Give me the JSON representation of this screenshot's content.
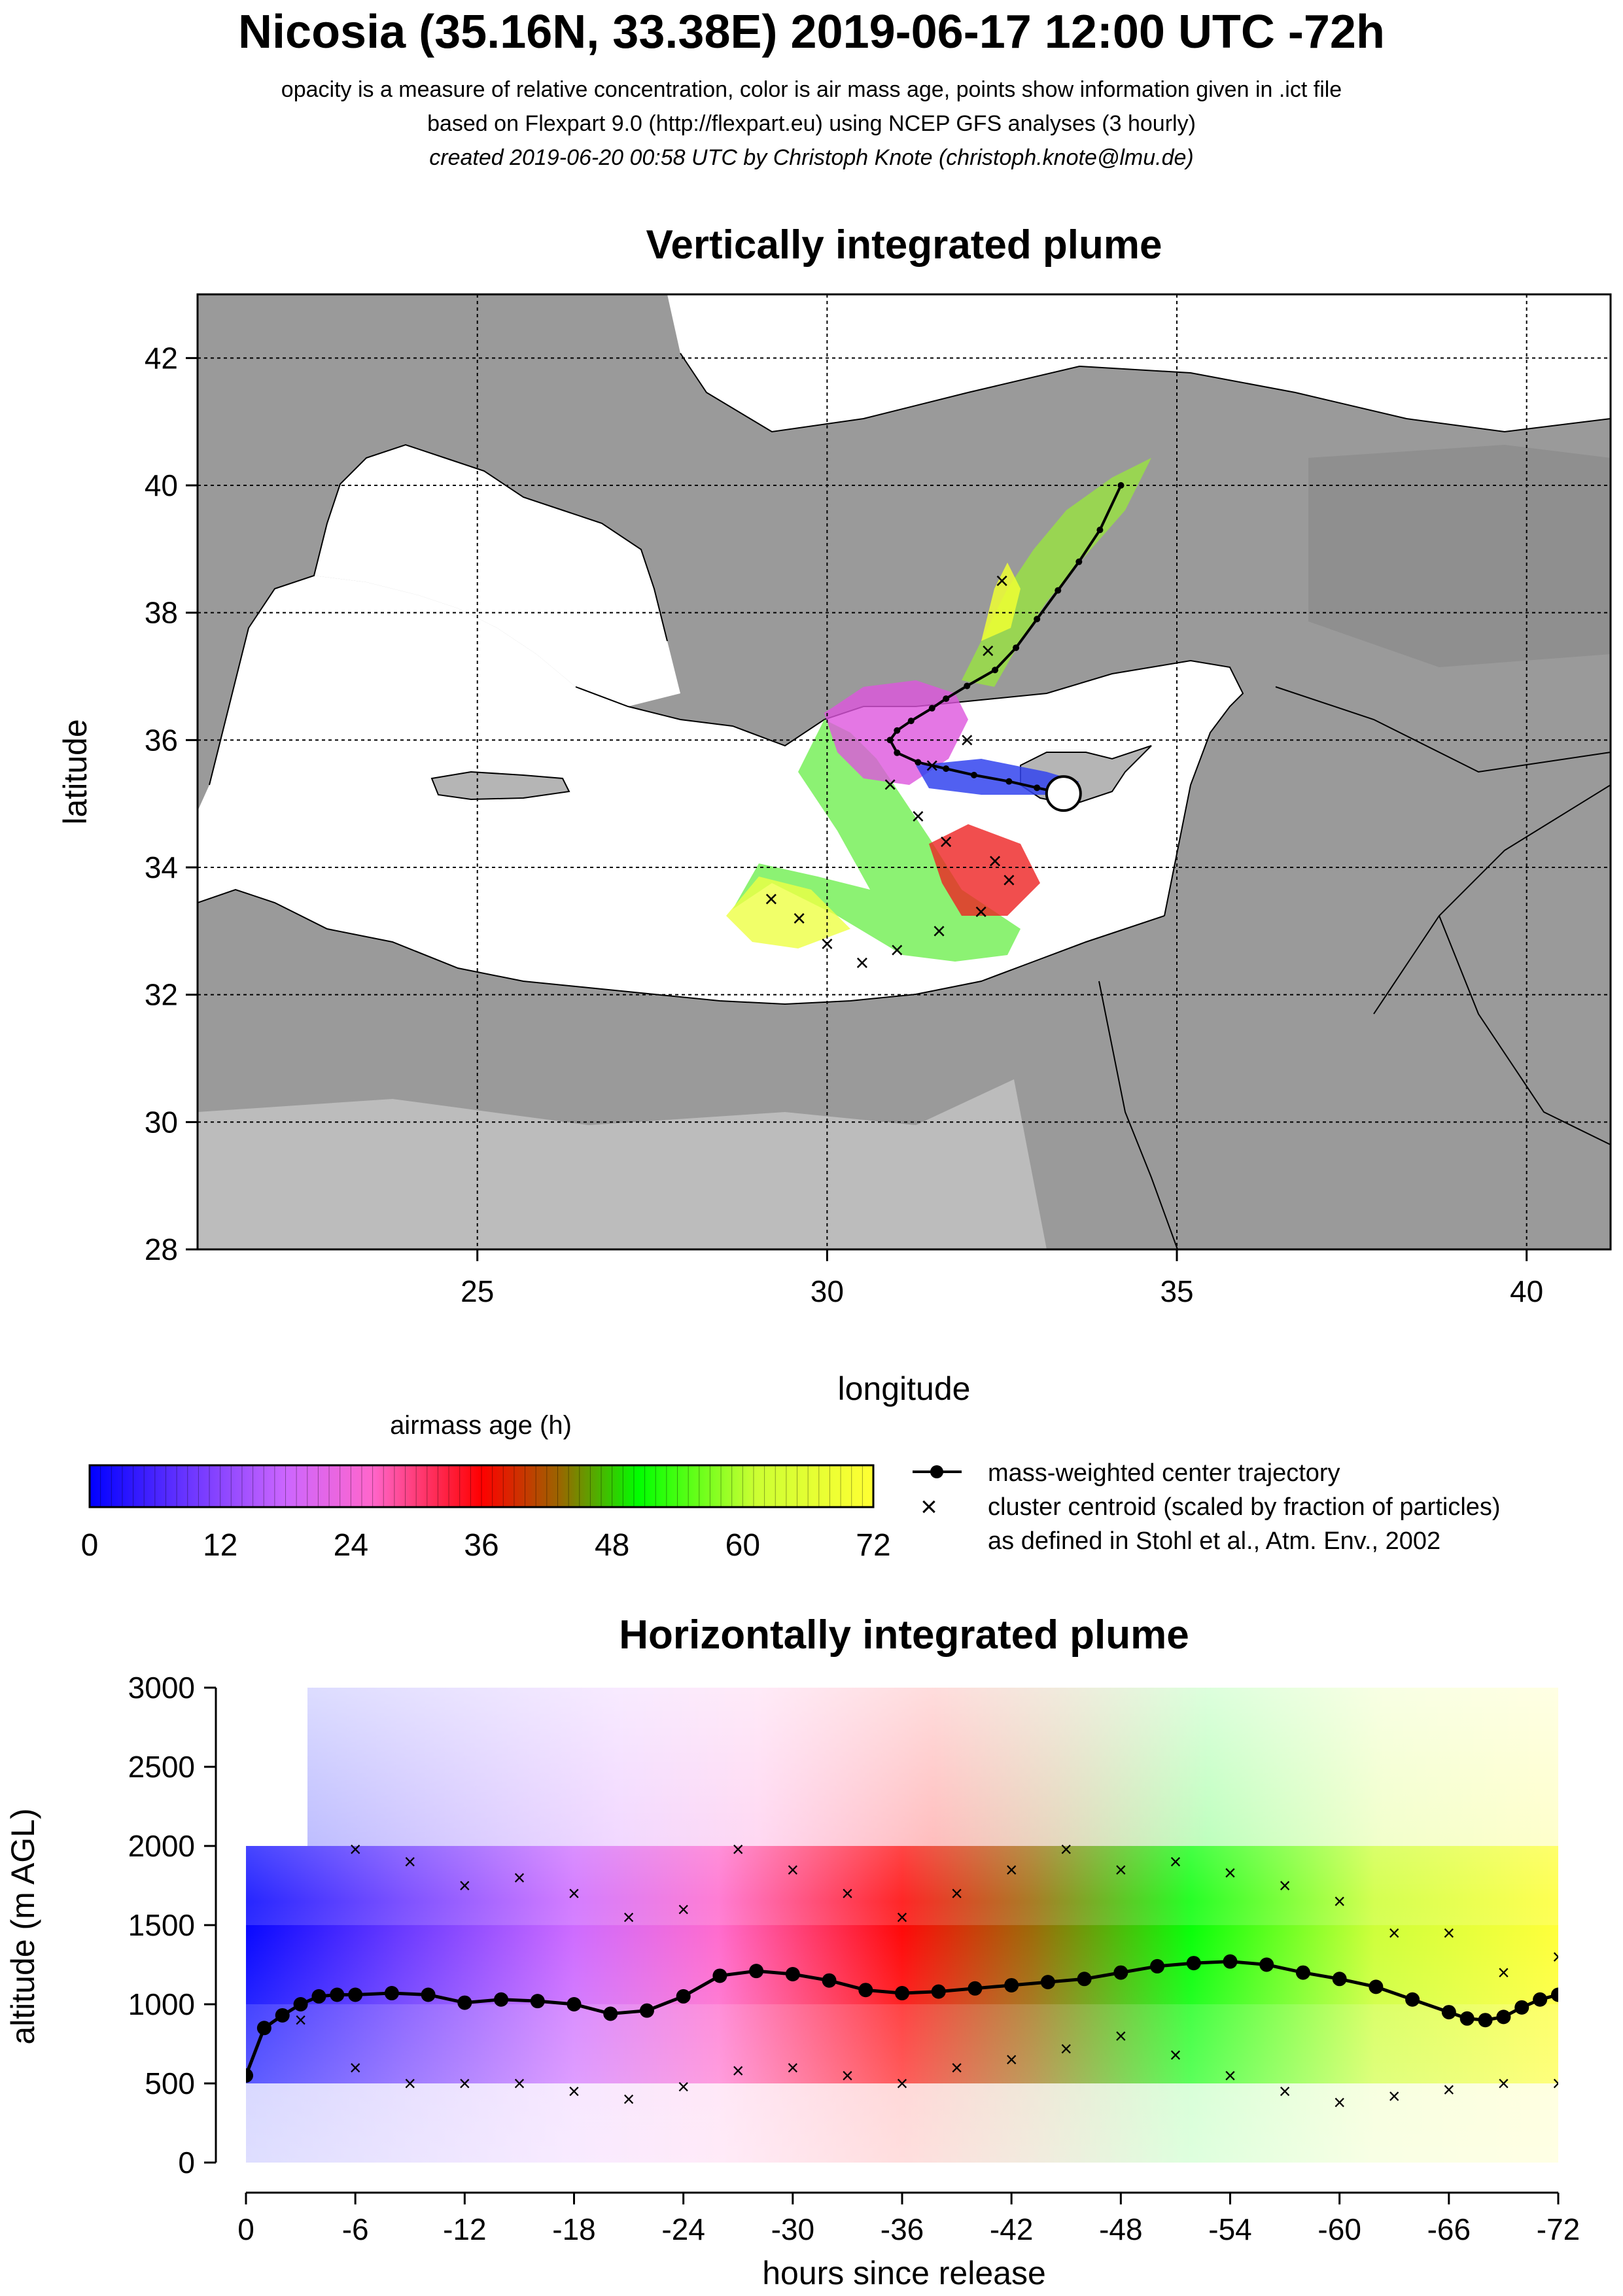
{
  "header": {
    "title": "Nicosia (35.16N, 33.38E) 2019-06-17 12:00 UTC -72h",
    "line1": "opacity is a measure of relative concentration, color is air mass age, points show information given in .ict file",
    "line2": "based on Flexpart 9.0 (http://flexpart.eu) using NCEP GFS analyses (3 hourly)",
    "line3": "created 2019-06-20 00:58 UTC by Christoph Knote (christoph.knote@lmu.de)"
  },
  "colors": {
    "age_scale": [
      "#0000ff",
      "#6633ff",
      "#cc66ff",
      "#ff66cc",
      "#ff0000",
      "#cc3300",
      "#996600",
      "#00ff00",
      "#ccff33",
      "#ffff33"
    ],
    "land": "#a8a8a8",
    "sea": "#ffffff"
  },
  "chart_data": [
    {
      "type": "scatter",
      "title": "Vertically integrated plume",
      "xlabel": "longitude",
      "ylabel": "latitude",
      "xlim": [
        21,
        41.2
      ],
      "ylim": [
        28,
        43
      ],
      "xticks": [
        25,
        30,
        35,
        40
      ],
      "yticks": [
        28,
        30,
        32,
        34,
        36,
        38,
        40,
        42
      ],
      "grid": true,
      "release_point": {
        "lon": 33.38,
        "lat": 35.16
      },
      "center_trajectory": {
        "lon": [
          33.38,
          33.0,
          32.6,
          32.1,
          31.7,
          31.3,
          31.0,
          30.9,
          31.0,
          31.2,
          31.5,
          31.7,
          32.0,
          32.4,
          32.7,
          33.0,
          33.3,
          33.6,
          33.9,
          34.2
        ],
        "lat": [
          35.16,
          35.25,
          35.35,
          35.45,
          35.55,
          35.65,
          35.8,
          36.0,
          36.15,
          36.3,
          36.5,
          36.65,
          36.85,
          37.1,
          37.45,
          37.9,
          38.35,
          38.8,
          39.3,
          40.0
        ]
      },
      "cluster_centroids": {
        "lon": [
          29.2,
          29.6,
          30.0,
          30.5,
          31.0,
          31.6,
          32.2,
          32.6,
          32.4,
          31.7,
          31.3,
          30.9,
          31.5,
          32.0,
          32.3,
          32.5
        ],
        "lat": [
          33.5,
          33.2,
          32.8,
          32.5,
          32.7,
          33.0,
          33.3,
          33.8,
          34.1,
          34.4,
          34.8,
          35.3,
          35.6,
          36.0,
          37.4,
          38.5
        ]
      }
    },
    {
      "type": "line",
      "title": "Horizontally integrated plume",
      "xlabel": "hours since release",
      "ylabel": "altitude (m AGL)",
      "xlim": [
        0,
        -72
      ],
      "ylim": [
        0,
        3000
      ],
      "xtick_labels": [
        "0",
        "-6",
        "-12",
        "-18",
        "-24",
        "-30",
        "-36",
        "-42",
        "-48",
        "-54",
        "-60",
        "-66",
        "-72"
      ],
      "ytick_labels": [
        "0",
        "500",
        "1000",
        "1500",
        "2000",
        "2500",
        "3000"
      ],
      "center_altitude": {
        "x": [
          0,
          -1,
          -2,
          -3,
          -4,
          -5,
          -6,
          -8,
          -10,
          -12,
          -14,
          -16,
          -18,
          -20,
          -22,
          -24,
          -26,
          -28,
          -30,
          -32,
          -34,
          -36,
          -38,
          -40,
          -42,
          -44,
          -46,
          -48,
          -50,
          -52,
          -54,
          -56,
          -58,
          -60,
          -62,
          -64,
          -66,
          -67,
          -68,
          -69,
          -70,
          -71,
          -72
        ],
        "y": [
          550,
          850,
          930,
          1000,
          1050,
          1060,
          1060,
          1070,
          1060,
          1010,
          1030,
          1020,
          1000,
          940,
          960,
          1050,
          1180,
          1210,
          1190,
          1150,
          1090,
          1070,
          1080,
          1100,
          1120,
          1140,
          1160,
          1200,
          1240,
          1260,
          1270,
          1250,
          1200,
          1160,
          1110,
          1030,
          950,
          910,
          900,
          920,
          980,
          1030,
          1060
        ]
      },
      "upper_cluster": {
        "x": [
          -6,
          -9,
          -12,
          -15,
          -18,
          -21,
          -24,
          -27,
          -30,
          -33,
          -36,
          -39,
          -42,
          -45,
          -48,
          -51,
          -54,
          -57,
          -60,
          -63,
          -66,
          -69,
          -72
        ],
        "y": [
          1980,
          1900,
          1750,
          1800,
          1700,
          1550,
          1600,
          1980,
          1850,
          1700,
          1550,
          1700,
          1850,
          1980,
          1850,
          1900,
          1830,
          1750,
          1650,
          1450,
          1450,
          1200,
          1300
        ]
      },
      "lower_cluster": {
        "x": [
          -3,
          -6,
          -9,
          -12,
          -15,
          -18,
          -21,
          -24,
          -27,
          -30,
          -33,
          -36,
          -39,
          -42,
          -45,
          -48,
          -51,
          -54,
          -57,
          -60,
          -63,
          -66,
          -69,
          -72
        ],
        "y": [
          900,
          600,
          500,
          500,
          500,
          450,
          400,
          480,
          580,
          600,
          550,
          500,
          600,
          650,
          720,
          800,
          680,
          550,
          450,
          380,
          420,
          460,
          500,
          500
        ]
      }
    }
  ],
  "legend": {
    "age_title": "airmass age (h)",
    "age_ticks": [
      "0",
      "12",
      "24",
      "36",
      "48",
      "60",
      "72"
    ],
    "center_label": "mass-weighted center trajectory",
    "cluster_label": "cluster centroid (scaled by fraction of particles)",
    "cluster_note": "as defined in Stohl et al., Atm. Env., 2002"
  }
}
